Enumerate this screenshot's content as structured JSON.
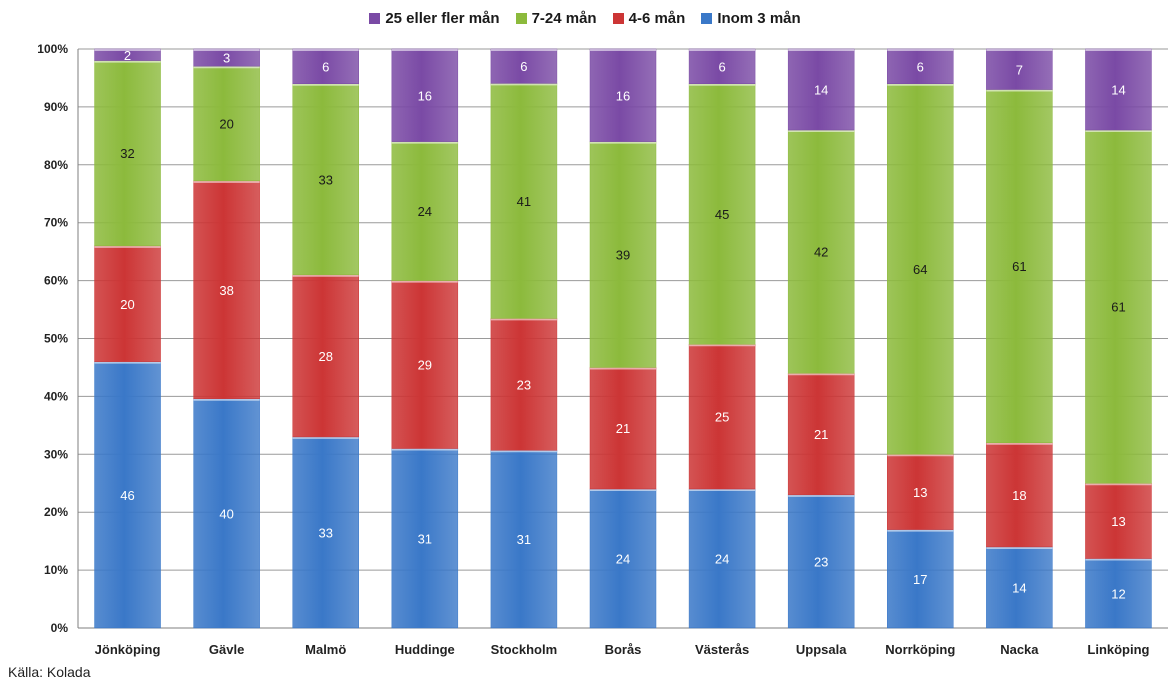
{
  "chart_data": {
    "type": "bar",
    "stacked": true,
    "percent": true,
    "categories": [
      "Jönköping",
      "Gävle",
      "Malmö",
      "Huddinge",
      "Stockholm",
      "Borås",
      "Västerås",
      "Uppsala",
      "Norrköping",
      "Nacka",
      "Linköping"
    ],
    "series": [
      {
        "name": "Inom 3 mån",
        "color": "#3a78c8",
        "values": [
          46,
          40,
          33,
          31,
          31,
          24,
          24,
          23,
          17,
          14,
          12
        ]
      },
      {
        "name": "4-6 mån",
        "color": "#cc3535",
        "values": [
          20,
          38,
          28,
          29,
          23,
          21,
          25,
          21,
          13,
          18,
          13
        ]
      },
      {
        "name": "7-24 mån",
        "color": "#8cba3c",
        "values": [
          32,
          20,
          33,
          24,
          41,
          39,
          45,
          42,
          64,
          61,
          61
        ]
      },
      {
        "name": "25 eller fler mån",
        "color": "#7a4aa5",
        "values": [
          2,
          3,
          6,
          16,
          6,
          16,
          6,
          14,
          6,
          7,
          14
        ]
      }
    ],
    "legend_order": [
      "25 eller fler mån",
      "7-24 mån",
      "4-6 mån",
      "Inom 3 mån"
    ],
    "legend_position": "top",
    "ylim": [
      0,
      100
    ],
    "yticks": [
      "0%",
      "10%",
      "20%",
      "30%",
      "40%",
      "50%",
      "60%",
      "70%",
      "80%",
      "90%",
      "100%"
    ],
    "grid": true,
    "source": "Källa: Kolada"
  }
}
